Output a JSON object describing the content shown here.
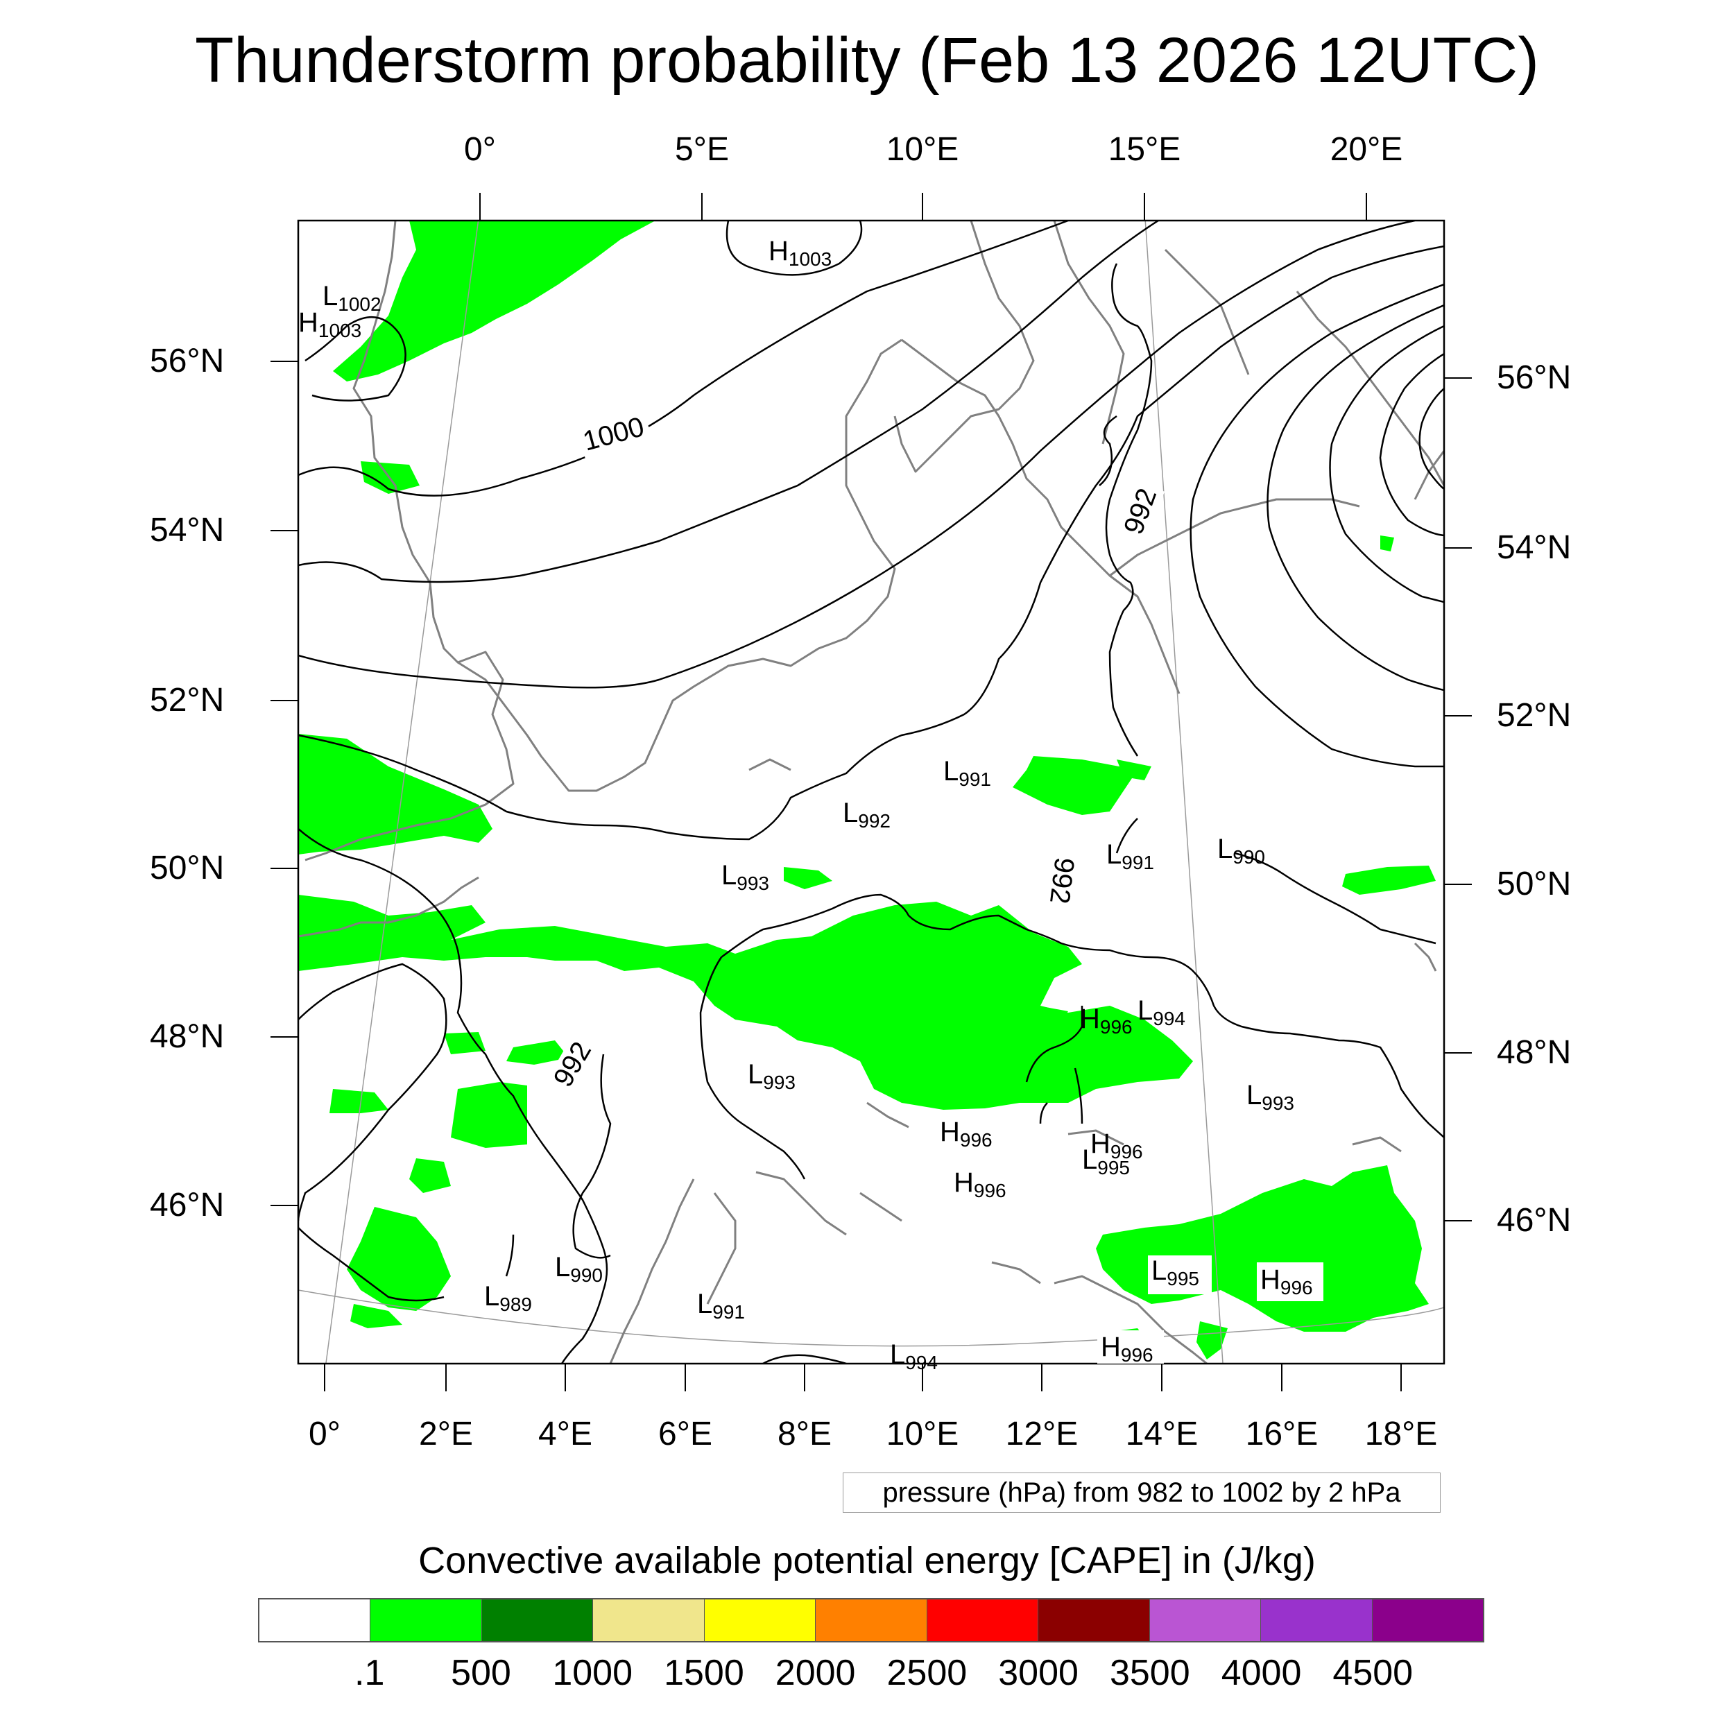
{
  "title": "Thunderstorm probability (Feb 13 2026 12UTC)",
  "top_lon_labels": [
    "0°",
    "5°E",
    "10°E",
    "15°E",
    "20°E"
  ],
  "bottom_lon_labels": [
    "0°",
    "2°E",
    "4°E",
    "6°E",
    "8°E",
    "10°E",
    "12°E",
    "14°E",
    "16°E",
    "18°E"
  ],
  "left_lat_labels": [
    "56°N",
    "54°N",
    "52°N",
    "50°N",
    "48°N",
    "46°N"
  ],
  "right_lat_labels": [
    "56°N",
    "54°N",
    "52°N",
    "50°N",
    "48°N",
    "46°N"
  ],
  "contour_labels": [
    "1000",
    "992",
    "992",
    "992"
  ],
  "pressure_centers": [
    {
      "kind": "H",
      "value": "1003"
    },
    {
      "kind": "L",
      "value": "1002"
    },
    {
      "kind": "H",
      "value": "1003"
    },
    {
      "kind": "L",
      "value": "991"
    },
    {
      "kind": "L",
      "value": "992"
    },
    {
      "kind": "L",
      "value": "993"
    },
    {
      "kind": "L",
      "value": "991"
    },
    {
      "kind": "L",
      "value": "990"
    },
    {
      "kind": "H",
      "value": "996"
    },
    {
      "kind": "L",
      "value": "994"
    },
    {
      "kind": "L",
      "value": "993"
    },
    {
      "kind": "L",
      "value": "993"
    },
    {
      "kind": "H",
      "value": "996"
    },
    {
      "kind": "H",
      "value": "996"
    },
    {
      "kind": "L",
      "value": "995"
    },
    {
      "kind": "H",
      "value": "996"
    },
    {
      "kind": "L",
      "value": "990"
    },
    {
      "kind": "L",
      "value": "989"
    },
    {
      "kind": "L",
      "value": "991"
    },
    {
      "kind": "L",
      "value": "995"
    },
    {
      "kind": "H",
      "value": "996"
    },
    {
      "kind": "H",
      "value": "996"
    },
    {
      "kind": "L",
      "value": "994"
    }
  ],
  "contour_info": "pressure (hPa) from 982 to 1002 by 2 hPa",
  "colorbar": {
    "title": "Convective available potential energy [CAPE] in (J/kg)",
    "colors": [
      "#ffffff",
      "#00ff00",
      "#008000",
      "#f0e68c",
      "#ffff00",
      "#ff8000",
      "#ff0000",
      "#8b0000",
      "#ba55d3",
      "#9932cc",
      "#8b008b"
    ],
    "labels": [
      ".1",
      "500",
      "1000",
      "1500",
      "2000",
      "2500",
      "3000",
      "3500",
      "4000",
      "4500"
    ]
  },
  "colors": {
    "cape_low": "#00ff00",
    "contour": "#000000",
    "coastline": "#888888",
    "graticule": "#999999"
  }
}
